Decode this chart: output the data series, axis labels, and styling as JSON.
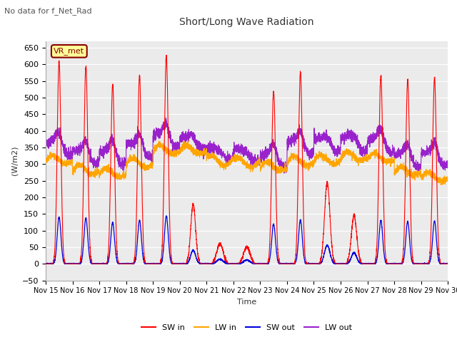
{
  "title": "Short/Long Wave Radiation",
  "subtitle": "No data for f_Net_Rad",
  "ylabel": "(W/m2)",
  "xlabel": "Time",
  "ylim": [
    -50,
    670
  ],
  "yticks": [
    -50,
    0,
    50,
    100,
    150,
    200,
    250,
    300,
    350,
    400,
    450,
    500,
    550,
    600,
    650
  ],
  "xtick_labels": [
    "Nov 15",
    "Nov 16",
    "Nov 17",
    "Nov 18",
    "Nov 19",
    "Nov 20",
    "Nov 21",
    "Nov 22",
    "Nov 23",
    "Nov 24",
    "Nov 25",
    "Nov 26",
    "Nov 27",
    "Nov 28",
    "Nov 29",
    "Nov 30"
  ],
  "legend_label": "VR_met",
  "colors": {
    "SW_in": "#FF0000",
    "LW_in": "#FFA500",
    "SW_out": "#0000DD",
    "LW_out": "#9922CC"
  },
  "fig_bg": "#FFFFFF",
  "plot_bg": "#EBEBEB",
  "grid_color": "#FFFFFF",
  "spine_color": "#AAAAAA"
}
